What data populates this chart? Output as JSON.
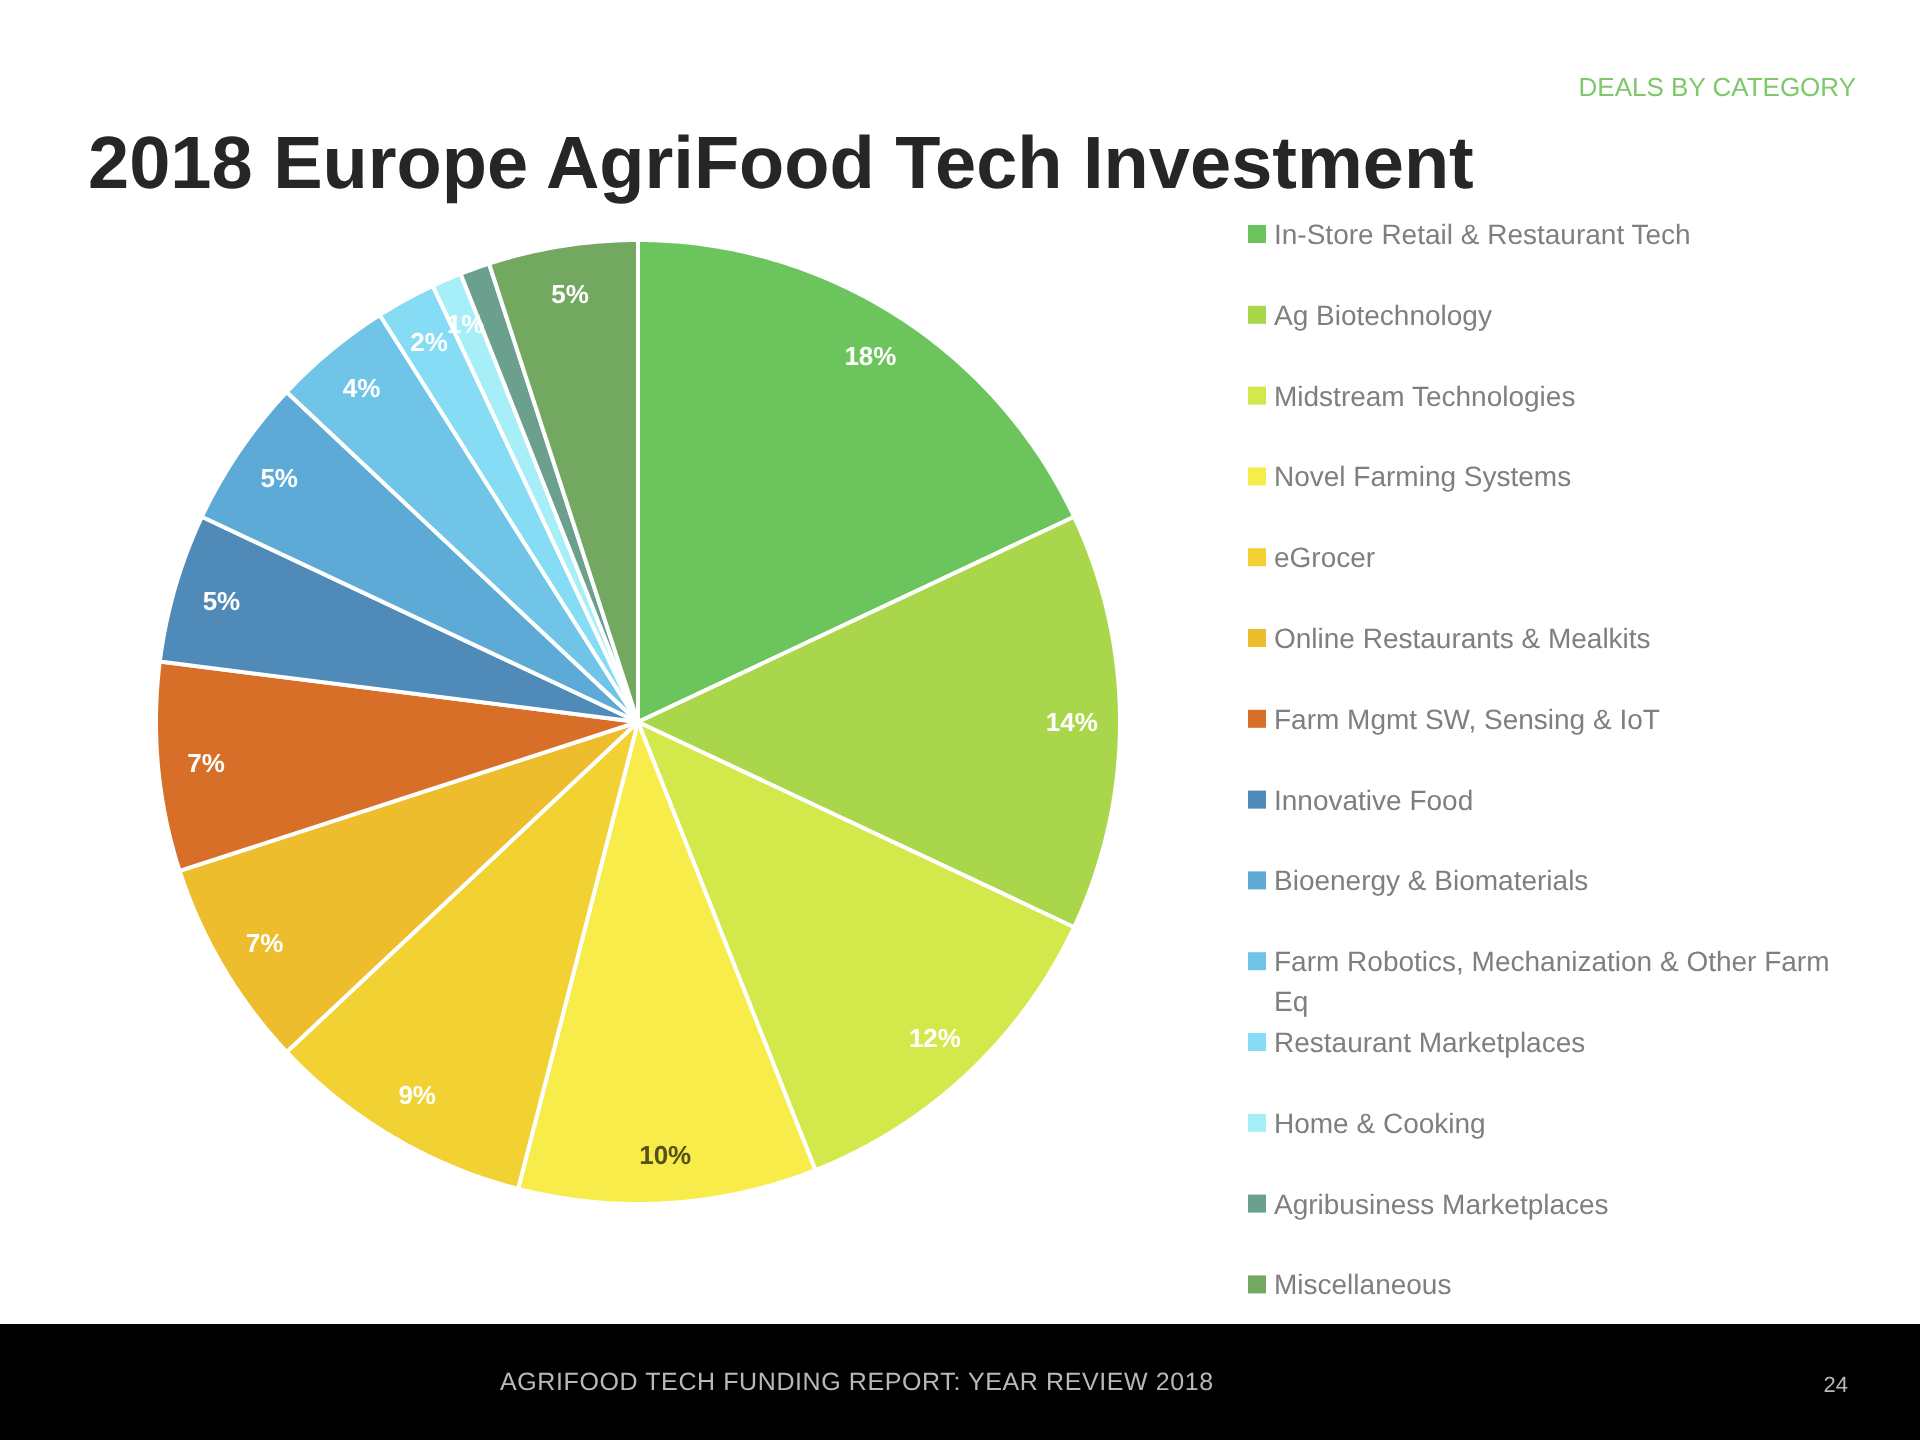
{
  "chart_data": {
    "type": "pie",
    "title": "2018 Europe AgriFood Tech Investment",
    "subtitle": "DEALS BY CATEGORY",
    "categories": [
      "In-Store Retail & Restaurant Tech",
      "Ag Biotechnology",
      "Midstream Technologies",
      "Novel Farming Systems",
      "eGrocer",
      "Online Restaurants & Mealkits",
      "Farm Mgmt SW, Sensing & IoT",
      "Innovative Food",
      "Bioenergy & Biomaterials",
      "Farm Robotics, Mechanization & Other Farm Eq",
      "Restaurant Marketplaces",
      "Home & Cooking",
      "Agribusiness Marketplaces",
      "Miscellaneous"
    ],
    "values": [
      18,
      14,
      12,
      10,
      9,
      7,
      7,
      5,
      5,
      4,
      2,
      1,
      1,
      5
    ],
    "colors": [
      "#6cc55c",
      "#a9d64a",
      "#d3e84a",
      "#f7ec4a",
      "#f2d132",
      "#eebd2e",
      "#d86f28",
      "#4f8ab8",
      "#5eaad6",
      "#6fc4e8",
      "#86dcf5",
      "#a6eef8",
      "#6ba08f",
      "#72a860"
    ],
    "value_labels": [
      "18%",
      "14%",
      "12%",
      "10%",
      "9%",
      "7%",
      "7%",
      "5%",
      "5%",
      "4%",
      "2%",
      "1%",
      null,
      "5%"
    ],
    "legend": "right",
    "annotations": [
      "AGRIFOOD TECH FUNDING REPORT: YEAR REVIEW 2018",
      "24"
    ]
  }
}
